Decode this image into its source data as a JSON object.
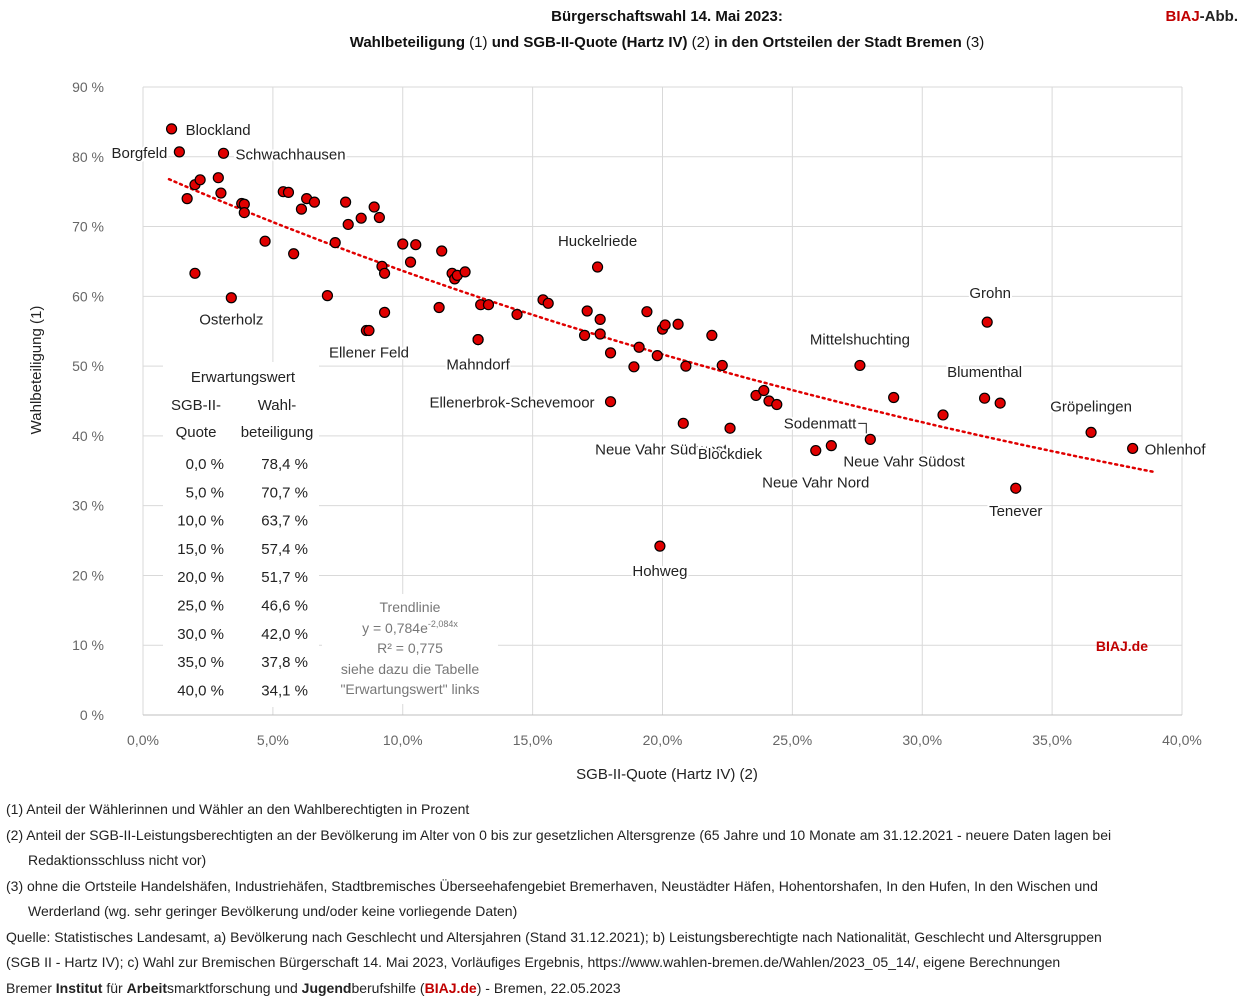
{
  "header": {
    "title_line1": "Bürgerschaftswahl 14. Mai 2023:",
    "title_line2_a": "Wahlbeteiligung",
    "title_line2_b": " (1) ",
    "title_line2_c": "und SGB-II-Quote (Hartz IV)",
    "title_line2_d": " (2) ",
    "title_line2_e": "in den Ortsteilen der Stadt Bremen",
    "title_line2_f": " (3)",
    "corner_red": "BIAJ",
    "corner_rest": "-Abb."
  },
  "chart_data": {
    "type": "scatter",
    "xlabel": "SGB-II-Quote (Hartz IV) (2)",
    "ylabel": "Wahlbeteiligung (1)",
    "xlim": [
      0,
      40
    ],
    "ylim": [
      0,
      90
    ],
    "x_ticks": [
      0,
      5,
      10,
      15,
      20,
      25,
      30,
      35,
      40
    ],
    "x_tick_labels": [
      "0,0%",
      "5,0%",
      "10,0%",
      "15,0%",
      "20,0%",
      "25,0%",
      "30,0%",
      "35,0%",
      "40,0%"
    ],
    "y_ticks": [
      0,
      10,
      20,
      30,
      40,
      50,
      60,
      70,
      80,
      90
    ],
    "y_tick_labels": [
      "0 %",
      "10 %",
      "20 %",
      "30 %",
      "40 %",
      "50 %",
      "60 %",
      "70 %",
      "80 %",
      "90 %"
    ],
    "grid": true,
    "point_color": "#e00000",
    "trend_color": "#e00000",
    "points": [
      [
        1.1,
        84.0,
        "Blockland"
      ],
      [
        1.4,
        80.7,
        "Borgfeld"
      ],
      [
        3.1,
        80.5,
        "Schwachhausen"
      ],
      [
        1.7,
        74.0,
        ""
      ],
      [
        2.0,
        76.0,
        ""
      ],
      [
        2.2,
        76.7,
        ""
      ],
      [
        2.0,
        63.3,
        ""
      ],
      [
        2.9,
        77.0,
        ""
      ],
      [
        3.0,
        74.8,
        ""
      ],
      [
        3.4,
        59.8,
        "Osterholz"
      ],
      [
        3.8,
        73.3,
        ""
      ],
      [
        3.9,
        73.2,
        ""
      ],
      [
        3.9,
        72.0,
        ""
      ],
      [
        4.7,
        67.9,
        ""
      ],
      [
        5.4,
        75.0,
        ""
      ],
      [
        5.6,
        74.9,
        ""
      ],
      [
        5.8,
        66.1,
        ""
      ],
      [
        6.1,
        72.5,
        ""
      ],
      [
        6.3,
        74.0,
        ""
      ],
      [
        6.6,
        73.5,
        ""
      ],
      [
        7.1,
        60.1,
        ""
      ],
      [
        7.4,
        67.7,
        ""
      ],
      [
        7.8,
        73.5,
        ""
      ],
      [
        7.9,
        70.3,
        ""
      ],
      [
        8.4,
        71.2,
        ""
      ],
      [
        8.6,
        55.1,
        ""
      ],
      [
        8.9,
        72.8,
        ""
      ],
      [
        9.1,
        71.3,
        ""
      ],
      [
        9.2,
        64.3,
        ""
      ],
      [
        9.3,
        63.3,
        ""
      ],
      [
        9.3,
        57.7,
        ""
      ],
      [
        10.0,
        67.5,
        ""
      ],
      [
        10.3,
        64.9,
        ""
      ],
      [
        10.5,
        67.4,
        ""
      ],
      [
        11.4,
        58.4,
        ""
      ],
      [
        11.5,
        66.5,
        ""
      ],
      [
        11.9,
        63.3,
        ""
      ],
      [
        12.0,
        62.5,
        ""
      ],
      [
        12.1,
        63.0,
        ""
      ],
      [
        12.4,
        63.5,
        ""
      ],
      [
        12.9,
        53.8,
        ""
      ],
      [
        13.0,
        58.8,
        ""
      ],
      [
        13.3,
        58.8,
        ""
      ],
      [
        14.4,
        57.4,
        ""
      ],
      [
        15.4,
        59.5,
        ""
      ],
      [
        15.6,
        59.0,
        ""
      ],
      [
        17.0,
        54.4,
        ""
      ],
      [
        17.1,
        57.9,
        ""
      ],
      [
        17.5,
        64.2,
        "Huckelriede"
      ],
      [
        17.6,
        56.7,
        ""
      ],
      [
        17.6,
        54.6,
        ""
      ],
      [
        18.0,
        51.9,
        ""
      ],
      [
        18.0,
        44.9,
        "Ellenerbrok-Schevemoor"
      ],
      [
        18.9,
        49.9,
        ""
      ],
      [
        19.1,
        52.7,
        ""
      ],
      [
        19.4,
        57.8,
        ""
      ],
      [
        19.8,
        51.5,
        ""
      ],
      [
        20.0,
        55.3,
        ""
      ],
      [
        20.1,
        55.9,
        ""
      ],
      [
        20.6,
        56.0,
        ""
      ],
      [
        20.8,
        41.8,
        "Neue Vahr Südwest"
      ],
      [
        20.9,
        50.0,
        ""
      ],
      [
        21.9,
        54.4,
        ""
      ],
      [
        22.3,
        50.1,
        ""
      ],
      [
        22.6,
        41.1,
        "Blockdiek"
      ],
      [
        23.6,
        45.8,
        ""
      ],
      [
        23.9,
        46.5,
        ""
      ],
      [
        24.1,
        45.0,
        ""
      ],
      [
        24.4,
        44.5,
        ""
      ],
      [
        25.9,
        37.9,
        "Neue Vahr Nord"
      ],
      [
        26.5,
        38.6,
        "Neue Vahr Südost"
      ],
      [
        27.6,
        50.1,
        "Mittelshuchting"
      ],
      [
        28.0,
        39.5,
        "Sodenmatt"
      ],
      [
        28.9,
        45.5,
        ""
      ],
      [
        30.8,
        43.0,
        ""
      ],
      [
        32.4,
        45.4,
        "Blumenthal"
      ],
      [
        32.5,
        56.3,
        "Grohn"
      ],
      [
        33.0,
        44.7,
        ""
      ],
      [
        33.6,
        32.5,
        "Tenever"
      ],
      [
        36.5,
        40.5,
        "Gröpelingen"
      ],
      [
        38.1,
        38.2,
        "Ohlenhof"
      ],
      [
        19.9,
        24.2,
        "Hohweg"
      ],
      [
        8.7,
        55.1,
        "Ellener Feld"
      ],
      [
        12.9,
        53.8,
        "Mahndorf"
      ]
    ],
    "trendline": {
      "a": 0.784,
      "b": -2.084,
      "x_from": 1.0,
      "x_to": 39.0,
      "label_title": "Trendlinie",
      "label_eq_main": "y = 0,784e",
      "label_eq_exp": "-2,084x",
      "label_r2": "R² = 0,775",
      "label_note1": "siehe dazu die Tabelle",
      "label_note2": "\"Erwartungswert\" links"
    },
    "expectation_table": {
      "title": "Erwartungswert",
      "col1_header": [
        "SGB-II-",
        "Quote"
      ],
      "col2_header": [
        "Wahl-",
        "beteiligung"
      ],
      "rows": [
        [
          "0,0 %",
          "78,4 %"
        ],
        [
          "5,0 %",
          "70,7 %"
        ],
        [
          "10,0 %",
          "63,7 %"
        ],
        [
          "15,0 %",
          "57,4 %"
        ],
        [
          "20,0 %",
          "51,7 %"
        ],
        [
          "25,0 %",
          "46,6 %"
        ],
        [
          "30,0 %",
          "42,0 %"
        ],
        [
          "35,0 %",
          "37,8 %"
        ],
        [
          "40,0 %",
          "34,1 %"
        ]
      ]
    },
    "watermark": "BIAJ.de"
  },
  "footnotes": {
    "f1": "(1) Anteil der Wählerinnen und Wähler an den Wahlberechtigten in Prozent",
    "f2a": "(2) Anteil der SGB-II-Leistungsberechtigten an der Bevölkerung im Alter von 0 bis zur gesetzlichen Altersgrenze (65 Jahre und 10 Monate am 31.12.2021 - neuere Daten lagen bei",
    "f2b": "Redaktionsschluss nicht vor)",
    "f3a": "(3) ohne die Ortsteile Handelshäfen, Industriehäfen, Stadtbremisches Überseehafengebiet Bremerhaven, Neustädter Häfen, Hohentorshafen, In den Hufen, In den Wischen und",
    "f3b": "Werderland (wg. sehr geringer Bevölkerung und/oder keine vorliegende Daten)",
    "source1": "Quelle: Statistisches Landesamt, a) Bevölkerung nach Geschlecht und Altersjahren (Stand 31.12.2021); b) Leistungsberechtigte nach Nationalität, Geschlecht und Altersgruppen",
    "source2": "(SGB II - Hartz IV); c) Wahl zur Bremischen Bürgerschaft 14. Mai 2023, Vorläufiges Ergebnis, https://www.wahlen-bremen.de/Wahlen/2023_05_14/, eigene Berechnungen",
    "credit_p1": "Bremer ",
    "credit_b1": "Institut",
    "credit_p2": " für ",
    "credit_b2": "Arbeit",
    "credit_p3": "smarktforschung und ",
    "credit_b3": "Jugend",
    "credit_p4": "berufshilfe (",
    "credit_red": "BIAJ.de",
    "credit_p5": ") - Bremen, 22.05.2023"
  }
}
